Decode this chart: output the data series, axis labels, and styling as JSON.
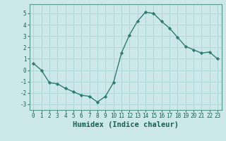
{
  "x": [
    0,
    1,
    2,
    3,
    4,
    5,
    6,
    7,
    8,
    9,
    10,
    11,
    12,
    13,
    14,
    15,
    16,
    17,
    18,
    19,
    20,
    21,
    22,
    23
  ],
  "y": [
    0.6,
    0.0,
    -1.1,
    -1.2,
    -1.6,
    -1.9,
    -2.2,
    -2.3,
    -2.8,
    -2.3,
    -1.1,
    1.5,
    3.1,
    4.3,
    5.1,
    5.0,
    4.3,
    3.7,
    2.9,
    2.1,
    1.8,
    1.5,
    1.6,
    1.0
  ],
  "line_color": "#2e7d6e",
  "marker": "D",
  "marker_size": 2.2,
  "bg_color": "#cde8e8",
  "grid_color": "#b0d8d8",
  "xlabel": "Humidex (Indice chaleur)",
  "ylim": [
    -3.5,
    5.8
  ],
  "xlim": [
    -0.5,
    23.5
  ],
  "yticks": [
    -3,
    -2,
    -1,
    0,
    1,
    2,
    3,
    4,
    5
  ],
  "xticks": [
    0,
    1,
    2,
    3,
    4,
    5,
    6,
    7,
    8,
    9,
    10,
    11,
    12,
    13,
    14,
    15,
    16,
    17,
    18,
    19,
    20,
    21,
    22,
    23
  ],
  "tick_label_fontsize": 5.5,
  "xlabel_fontsize": 7.5,
  "tick_color": "#1a5f52",
  "axis_color": "#1a5f52",
  "spine_color": "#5a9a8a"
}
